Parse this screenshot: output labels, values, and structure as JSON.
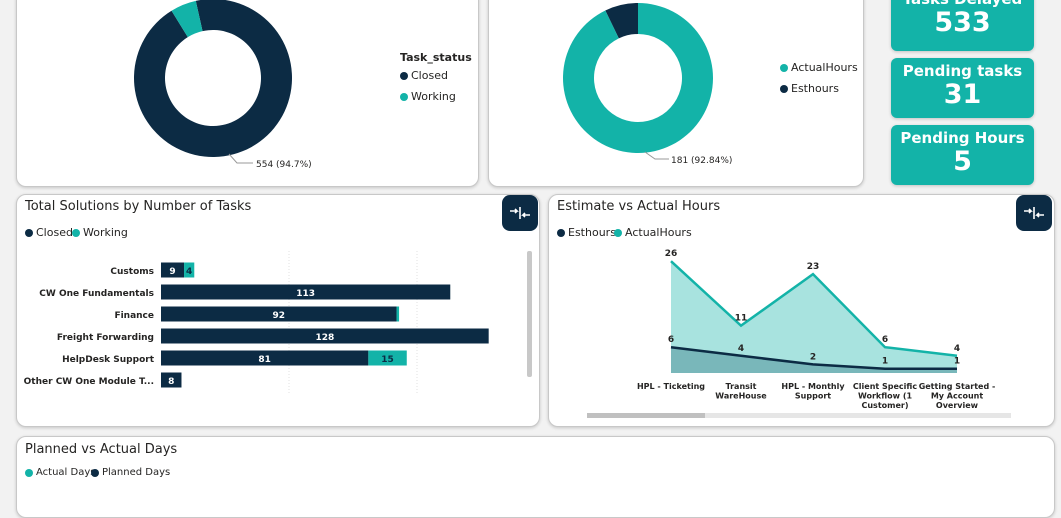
{
  "colors": {
    "dark": "#0c2b44",
    "teal": "#13b3a8",
    "teal_light": "#a8e3df"
  },
  "donut_status": {
    "legend_title": "Task_status",
    "legend": [
      "Closed",
      "Working"
    ],
    "label": "554 (94.7%)"
  },
  "donut_hours": {
    "legend": [
      "ActualHours",
      "Esthours"
    ],
    "label": "181 (92.84%)"
  },
  "kpis": {
    "tasks_delayed": {
      "label": "Tasks Delayed",
      "value": "533"
    },
    "pending_tasks": {
      "label": "Pending tasks",
      "value": "31"
    },
    "pending_hours": {
      "label": "Pending Hours",
      "value": "5"
    }
  },
  "solutions": {
    "title": "Total Solutions by Number of Tasks",
    "legend": [
      "Closed",
      "Working"
    ]
  },
  "estimate": {
    "title": "Estimate vs Actual Hours",
    "legend": [
      "Esthours",
      "ActualHours"
    ]
  },
  "planned": {
    "title": "Planned vs Actual Days",
    "legend": [
      "Actual Days",
      "Planned Days"
    ]
  },
  "chart_data": [
    {
      "type": "pie",
      "legend_title": "Task_status",
      "categories": [
        "Closed",
        "Working"
      ],
      "values": [
        554,
        31
      ],
      "labels": [
        "554 (94.7%)",
        ""
      ]
    },
    {
      "type": "pie",
      "categories": [
        "ActualHours",
        "Esthours"
      ],
      "values": [
        181,
        14
      ],
      "labels": [
        "181 (92.84%)",
        ""
      ]
    },
    {
      "type": "bar",
      "title": "Total Solutions by Number of Tasks",
      "categories": [
        "Customs",
        "CW One Fundamentals",
        "Finance",
        "Freight Forwarding",
        "HelpDesk Support",
        "Other CW One Module T..."
      ],
      "series": [
        {
          "name": "Closed",
          "values": [
            9,
            113,
            92,
            128,
            81,
            8
          ]
        },
        {
          "name": "Working",
          "values": [
            4,
            0,
            1,
            0,
            15,
            0
          ]
        }
      ],
      "labels": [
        [
          "9",
          "113",
          "92",
          "128",
          "81",
          "8"
        ],
        [
          "4",
          "",
          "",
          "",
          "15",
          ""
        ]
      ]
    },
    {
      "type": "area",
      "title": "Estimate vs Actual Hours",
      "categories": [
        "HPL - Ticketing",
        "Transit WareHouse",
        "HPL - Monthly Support",
        "Client Specific Workflow (1 Customer)",
        "Getting Started - My Account Overview"
      ],
      "category_lines": [
        [
          "HPL - Ticketing"
        ],
        [
          "Transit",
          "WareHouse"
        ],
        [
          "HPL - Monthly",
          "Support"
        ],
        [
          "Client Specific",
          "Workflow (1",
          "Customer)"
        ],
        [
          "Getting Started -",
          "My Account",
          "Overview"
        ]
      ],
      "series": [
        {
          "name": "ActualHours",
          "values": [
            26,
            11,
            23,
            6,
            4
          ]
        },
        {
          "name": "Esthours",
          "values": [
            6,
            4,
            2,
            1,
            1
          ]
        }
      ]
    }
  ]
}
